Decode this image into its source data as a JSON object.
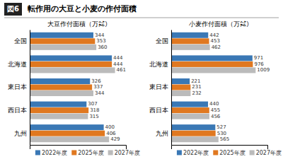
{
  "title": "転作用の大豆と小麦の作付面積",
  "annotations": [
    "図6"
  ],
  "chart_data": [
    {
      "type": "bar",
      "orientation": "horizontal",
      "title": "大豆作付面積（万㌶）",
      "categories": [
        "全国",
        "北海道",
        "東日本",
        "西日本",
        "九州"
      ],
      "series": [
        {
          "name": "2022年度",
          "color": "#3A78B5",
          "values": [
            344,
            444,
            326,
            307,
            400
          ]
        },
        {
          "name": "2025年度",
          "color": "#E07820",
          "values": [
            353,
            444,
            337,
            318,
            406
          ]
        },
        {
          "name": "2027年度",
          "color": "#BBBBBB",
          "values": [
            360,
            461,
            344,
            315,
            429
          ]
        }
      ],
      "xlim": [
        0,
        520
      ],
      "xticks": [],
      "tick_labels": "y",
      "grid": false,
      "data_labels": true,
      "legend": "lower right"
    },
    {
      "type": "bar",
      "orientation": "horizontal",
      "title": "小麦作付面積（万㌶）",
      "categories": [
        "全国",
        "北海道",
        "東日本",
        "西日本",
        "九州"
      ],
      "series": [
        {
          "name": "2022年度",
          "color": "#3A78B5",
          "values": [
            442,
            971,
            221,
            440,
            527
          ]
        },
        {
          "name": "2025年度",
          "color": "#E07820",
          "values": [
            453,
            976,
            231,
            455,
            530
          ]
        },
        {
          "name": "2027年度",
          "color": "#BBBBBB",
          "values": [
            462,
            1009,
            232,
            456,
            565
          ]
        }
      ],
      "xlim": [
        0,
        1150
      ],
      "xticks": [],
      "tick_labels": "y",
      "grid": false,
      "data_labels": true,
      "legend": "lower right"
    }
  ]
}
